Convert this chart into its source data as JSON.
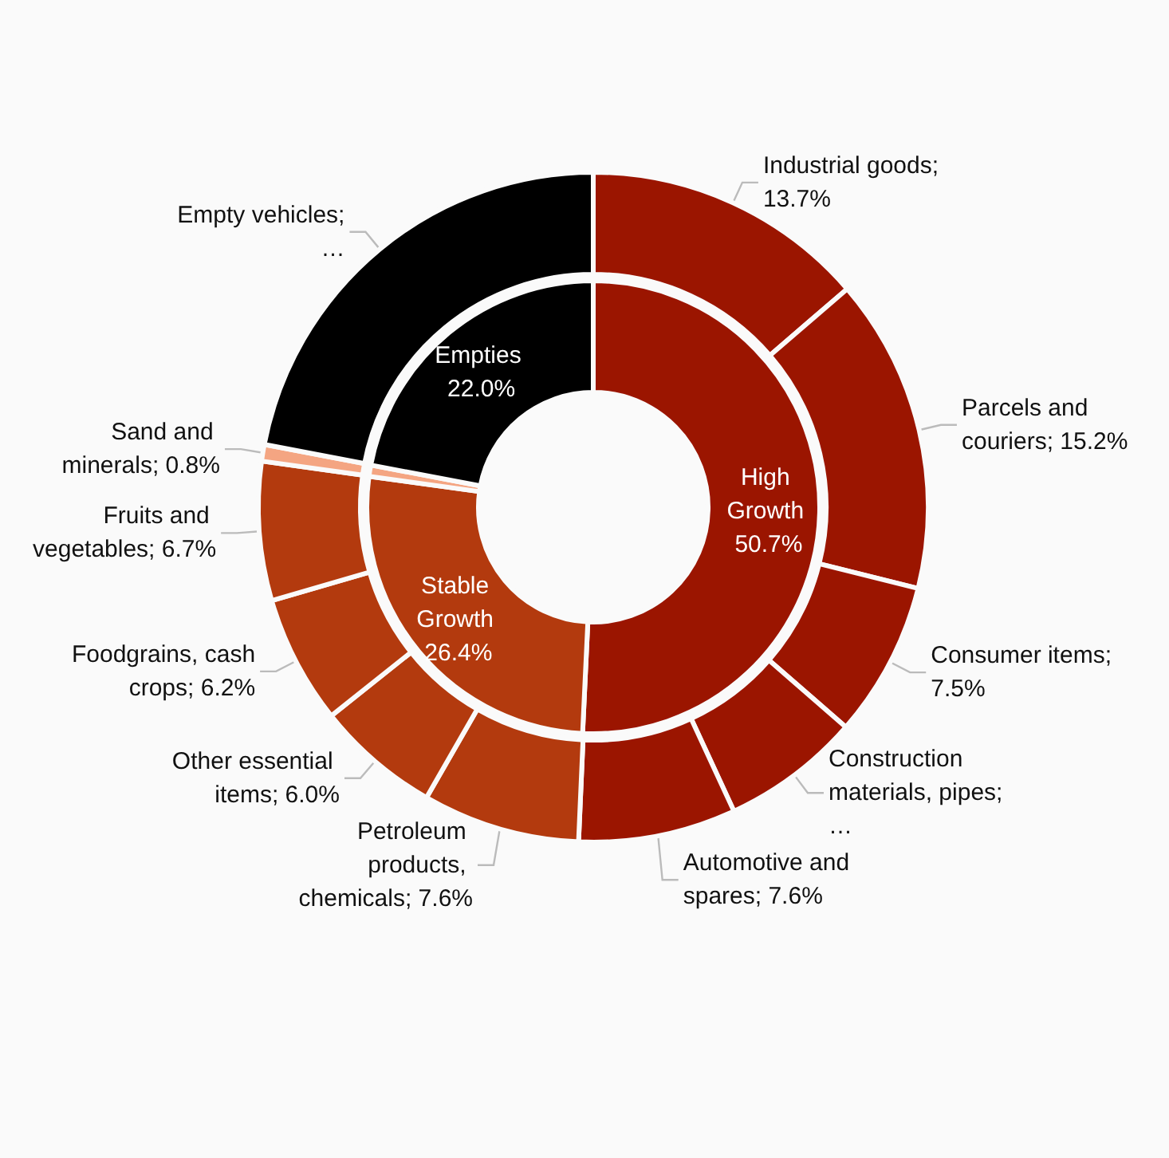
{
  "chart_data": [
    {
      "type": "donut",
      "legend": false,
      "categories": [
        "High Growth",
        "Stable Growth",
        null,
        "Empties"
      ],
      "values": [
        50.7,
        26.4,
        0.8,
        22.0
      ],
      "colors": [
        "#9b1500",
        "#b33a0e",
        "#f4a582",
        "#000000"
      ],
      "value_labels": [
        "50.7%",
        "26.4%",
        null,
        "22.0%"
      ]
    },
    {
      "type": "donut",
      "legend": false,
      "categories": [
        "Industrial goods",
        "Parcels and couriers",
        "Consumer items",
        "Construction materials, pipes",
        "Automotive and spares",
        "Petroleum products, chemicals",
        "Other essential items",
        "Foodgrains, cash crops",
        "Fruits and vegetables",
        "Sand and minerals",
        "Empty vehicles"
      ],
      "values": [
        13.7,
        15.2,
        7.5,
        6.7,
        7.6,
        7.6,
        6.0,
        6.2,
        6.7,
        0.8,
        22.0
      ],
      "colors": [
        "#9b1500",
        "#9b1500",
        "#9b1500",
        "#9b1500",
        "#9b1500",
        "#b33a0e",
        "#b33a0e",
        "#b33a0e",
        "#b33a0e",
        "#f4a582",
        "#000000"
      ],
      "value_labels": [
        "; 13.7%",
        "; 15.2%",
        "; 7.5%",
        ";…",
        "; 7.6%",
        "; 7.6%",
        "; 6.0%",
        "; 6.2%",
        "; 6.7%",
        "; 0.8%",
        ";…"
      ]
    }
  ]
}
